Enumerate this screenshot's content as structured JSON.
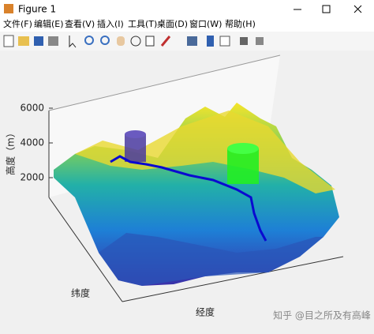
{
  "window": {
    "title": "Figure 1"
  },
  "menu": [
    "文件(F)",
    "编辑(E)",
    "查看(V)",
    "插入(I)",
    "工具(T)",
    "桌面(D)",
    "窗口(W)",
    "帮助(H)"
  ],
  "axes": {
    "zlabel": "高度（m）",
    "ylabel": "纬度",
    "xlabel": "经度",
    "zticks": [
      2000,
      4000,
      6000
    ]
  },
  "watermark": "知乎 @目之所及有高峰"
}
